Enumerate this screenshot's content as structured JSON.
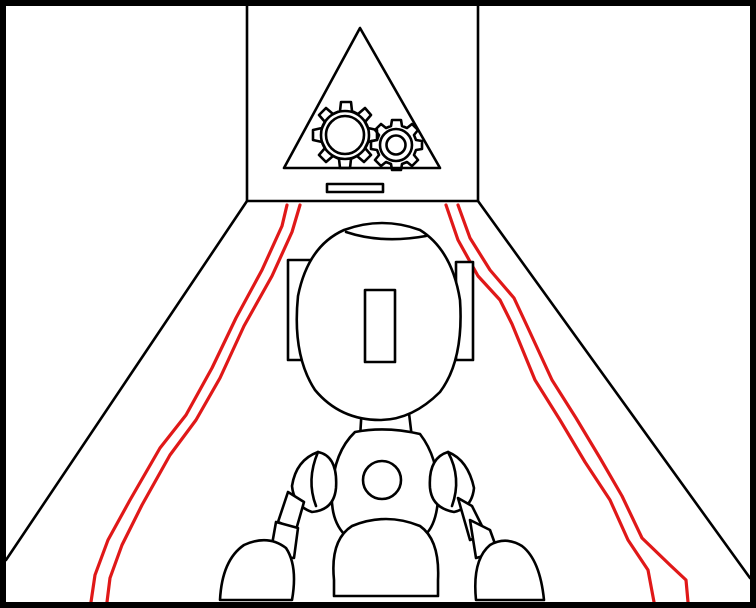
{
  "scene": {
    "background_color": "#ffffff",
    "frame_color": "#000000",
    "laser_color": "#e01818"
  },
  "icons": {
    "door_sign": "gears-triangle-icon"
  }
}
